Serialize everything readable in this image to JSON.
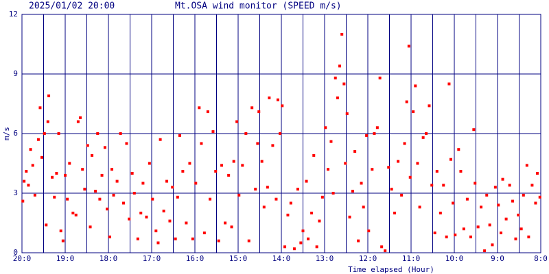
{
  "chart_data": {
    "type": "scatter",
    "timestamp": "2025/01/02 20:00",
    "title": "Mt.OSA wind monitor (SPEED m/s)",
    "ylabel": "m/s",
    "xlabel": "Time elapsed (Hour)",
    "color": "#ff0000",
    "grid": true,
    "xlim": [
      0,
      12
    ],
    "ylim": [
      0,
      12
    ],
    "yticks": [
      0,
      3,
      6,
      9,
      12
    ],
    "xticks": [
      {
        "value": 0,
        "label": "20:0"
      },
      {
        "value": 1,
        "label": "19:0"
      },
      {
        "value": 2,
        "label": "18:0"
      },
      {
        "value": 3,
        "label": "17:0"
      },
      {
        "value": 4,
        "label": "16:0"
      },
      {
        "value": 5,
        "label": "15:0"
      },
      {
        "value": 6,
        "label": "14:0"
      },
      {
        "value": 7,
        "label": "13:0"
      },
      {
        "value": 8,
        "label": "12:0"
      },
      {
        "value": 9,
        "label": "11:0"
      },
      {
        "value": 10,
        "label": "10:0"
      },
      {
        "value": 11,
        "label": "9:0"
      },
      {
        "value": 12,
        "label": "8:0"
      }
    ],
    "x": [
      0.02,
      0.05,
      0.1,
      0.15,
      0.2,
      0.25,
      0.3,
      0.38,
      0.42,
      0.46,
      0.52,
      0.56,
      0.6,
      0.62,
      0.7,
      0.75,
      0.8,
      0.85,
      0.9,
      0.95,
      1.0,
      1.05,
      1.1,
      1.18,
      1.25,
      1.3,
      1.35,
      1.4,
      1.45,
      1.52,
      1.58,
      1.62,
      1.7,
      1.75,
      1.8,
      1.85,
      1.92,
      1.97,
      2.03,
      2.08,
      2.12,
      2.2,
      2.28,
      2.35,
      2.42,
      2.48,
      2.55,
      2.6,
      2.68,
      2.75,
      2.8,
      2.88,
      2.95,
      3.02,
      3.1,
      3.15,
      3.2,
      3.28,
      3.35,
      3.42,
      3.48,
      3.55,
      3.6,
      3.65,
      3.72,
      3.8,
      3.88,
      3.95,
      4.02,
      4.1,
      4.15,
      4.22,
      4.3,
      4.35,
      4.42,
      4.48,
      4.55,
      4.62,
      4.7,
      4.78,
      4.85,
      4.9,
      4.97,
      5.02,
      5.1,
      5.18,
      5.25,
      5.32,
      5.4,
      5.45,
      5.48,
      5.55,
      5.6,
      5.68,
      5.72,
      5.8,
      5.88,
      5.92,
      5.97,
      6.02,
      6.08,
      6.15,
      6.22,
      6.3,
      6.38,
      6.45,
      6.5,
      6.58,
      6.62,
      6.7,
      6.75,
      6.82,
      6.88,
      6.95,
      7.02,
      7.08,
      7.15,
      7.2,
      7.25,
      7.3,
      7.35,
      7.4,
      7.45,
      7.48,
      7.52,
      7.58,
      7.65,
      7.7,
      7.78,
      7.85,
      7.9,
      7.97,
      8.02,
      8.1,
      8.15,
      8.22,
      8.28,
      8.32,
      8.4,
      8.48,
      8.55,
      8.62,
      8.7,
      8.78,
      8.85,
      8.9,
      8.95,
      8.98,
      9.05,
      9.1,
      9.15,
      9.2,
      9.28,
      9.35,
      9.42,
      9.48,
      9.55,
      9.6,
      9.68,
      9.75,
      9.82,
      9.88,
      9.92,
      9.97,
      10.02,
      10.1,
      10.15,
      10.22,
      10.3,
      10.38,
      10.45,
      10.48,
      10.55,
      10.62,
      10.7,
      10.75,
      10.82,
      10.88,
      10.95,
      11.02,
      11.08,
      11.12,
      11.2,
      11.28,
      11.35,
      11.42,
      11.48,
      11.55,
      11.6,
      11.68,
      11.72,
      11.8,
      11.88,
      11.92,
      11.98
    ],
    "values": [
      2.6,
      3.6,
      4.1,
      3.4,
      5.2,
      4.4,
      2.9,
      5.7,
      7.3,
      4.8,
      6.0,
      1.4,
      6.6,
      7.9,
      3.8,
      2.8,
      4.0,
      6.0,
      1.1,
      0.6,
      3.9,
      2.7,
      4.5,
      2.0,
      1.9,
      6.6,
      6.8,
      4.2,
      3.2,
      5.4,
      1.3,
      4.9,
      3.1,
      6.0,
      2.7,
      3.9,
      5.3,
      2.2,
      0.8,
      4.2,
      2.9,
      3.6,
      6.0,
      2.5,
      5.5,
      1.7,
      4.0,
      3.0,
      0.7,
      2.0,
      3.5,
      1.8,
      4.5,
      2.7,
      1.1,
      0.5,
      5.7,
      2.1,
      3.6,
      1.6,
      3.3,
      0.7,
      2.8,
      5.9,
      4.1,
      1.5,
      4.5,
      0.7,
      3.5,
      7.3,
      5.5,
      1.0,
      7.1,
      2.7,
      6.1,
      4.1,
      0.6,
      4.4,
      1.5,
      3.9,
      1.3,
      4.6,
      6.6,
      2.9,
      4.4,
      6.0,
      0.6,
      7.3,
      3.2,
      5.5,
      7.1,
      4.6,
      2.3,
      3.3,
      7.8,
      5.4,
      2.7,
      7.7,
      6.0,
      7.4,
      0.3,
      1.9,
      2.5,
      0.2,
      3.2,
      0.5,
      1.1,
      3.6,
      0.7,
      2.0,
      4.9,
      0.3,
      1.6,
      2.8,
      6.3,
      4.2,
      5.6,
      3.0,
      8.8,
      7.8,
      9.4,
      11.0,
      8.5,
      4.5,
      7.0,
      1.8,
      3.1,
      5.1,
      0.6,
      3.5,
      2.3,
      5.9,
      1.1,
      4.2,
      6.0,
      6.3,
      8.8,
      0.3,
      0.1,
      4.3,
      3.2,
      2.0,
      4.6,
      2.9,
      5.5,
      7.6,
      10.4,
      3.8,
      7.1,
      8.4,
      4.5,
      2.3,
      5.8,
      6.0,
      7.4,
      3.4,
      1.0,
      4.1,
      2.0,
      3.4,
      0.8,
      8.5,
      4.7,
      2.5,
      0.9,
      5.2,
      4.1,
      1.2,
      2.7,
      0.8,
      6.2,
      3.5,
      1.3,
      2.3,
      0.1,
      2.9,
      1.4,
      0.4,
      3.3,
      2.4,
      1.0,
      3.7,
      1.7,
      3.4,
      2.6,
      0.7,
      1.9,
      1.2,
      2.9,
      4.4,
      0.8,
      3.4,
      2.5,
      4.0,
      2.8
    ]
  }
}
